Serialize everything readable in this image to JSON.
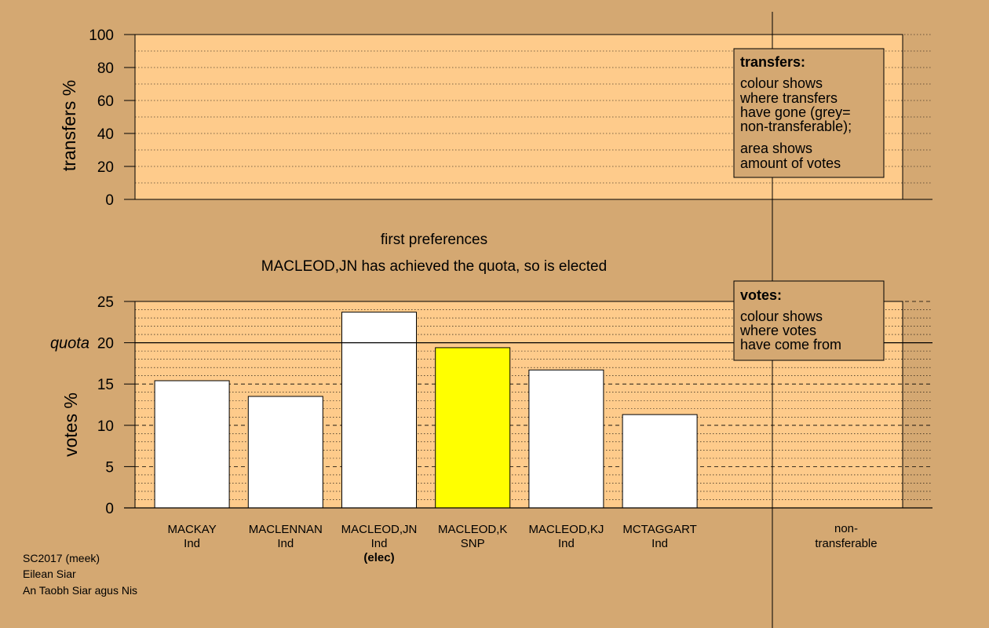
{
  "chart_data": [
    {
      "type": "bar",
      "panel": "transfers",
      "ylabel": "transfers %",
      "ylim": [
        0,
        100
      ],
      "yticks": [
        0,
        20,
        40,
        60,
        80,
        100
      ],
      "grid": "dotted",
      "values": [],
      "legend": {
        "placement": "top-right",
        "title": "transfers:",
        "lines1": [
          "colour shows",
          "where transfers",
          "have gone (grey=",
          "non-transferable);"
        ],
        "lines2": [
          "area shows",
          "amount of votes"
        ]
      }
    },
    {
      "type": "bar",
      "panel": "votes",
      "stage_label": "first preferences",
      "message": "MACLEOD,JN has achieved the quota, so is elected",
      "ylabel": "votes %",
      "ylim": [
        0,
        25
      ],
      "yticks": [
        0,
        5,
        10,
        15,
        20,
        25
      ],
      "quota": 20,
      "quota_label": "quota",
      "grid": "dotted",
      "categories": [
        {
          "name": "MACKAY",
          "party": "Ind",
          "note": ""
        },
        {
          "name": "MACLENNAN",
          "party": "Ind",
          "note": ""
        },
        {
          "name": "MACLEOD,JN",
          "party": "Ind",
          "note": "(elec)"
        },
        {
          "name": "MACLEOD,K",
          "party": "SNP",
          "note": ""
        },
        {
          "name": "MACLEOD,KJ",
          "party": "Ind",
          "note": ""
        },
        {
          "name": "MCTAGGART",
          "party": "Ind",
          "note": ""
        }
      ],
      "values": [
        15.4,
        13.5,
        23.7,
        19.4,
        16.7,
        11.3
      ],
      "colors": [
        "#ffffff",
        "#ffffff",
        "#ffffff",
        "#ffff00",
        "#ffffff",
        "#ffffff"
      ],
      "nontransferable_label_lines": [
        "non-",
        "transferable"
      ],
      "legend": {
        "placement": "top-right",
        "title": "votes:",
        "lines": [
          "colour shows",
          "where votes",
          "have come from"
        ]
      }
    }
  ],
  "footer": {
    "lines": [
      "SC2017 (meek)",
      "Eilean Siar",
      "An Taobh Siar agus Nis"
    ]
  },
  "colors": {
    "background": "#d4a872",
    "panel": "#fecb8b",
    "legend_box": "#d4a872",
    "axis": "#000000"
  }
}
